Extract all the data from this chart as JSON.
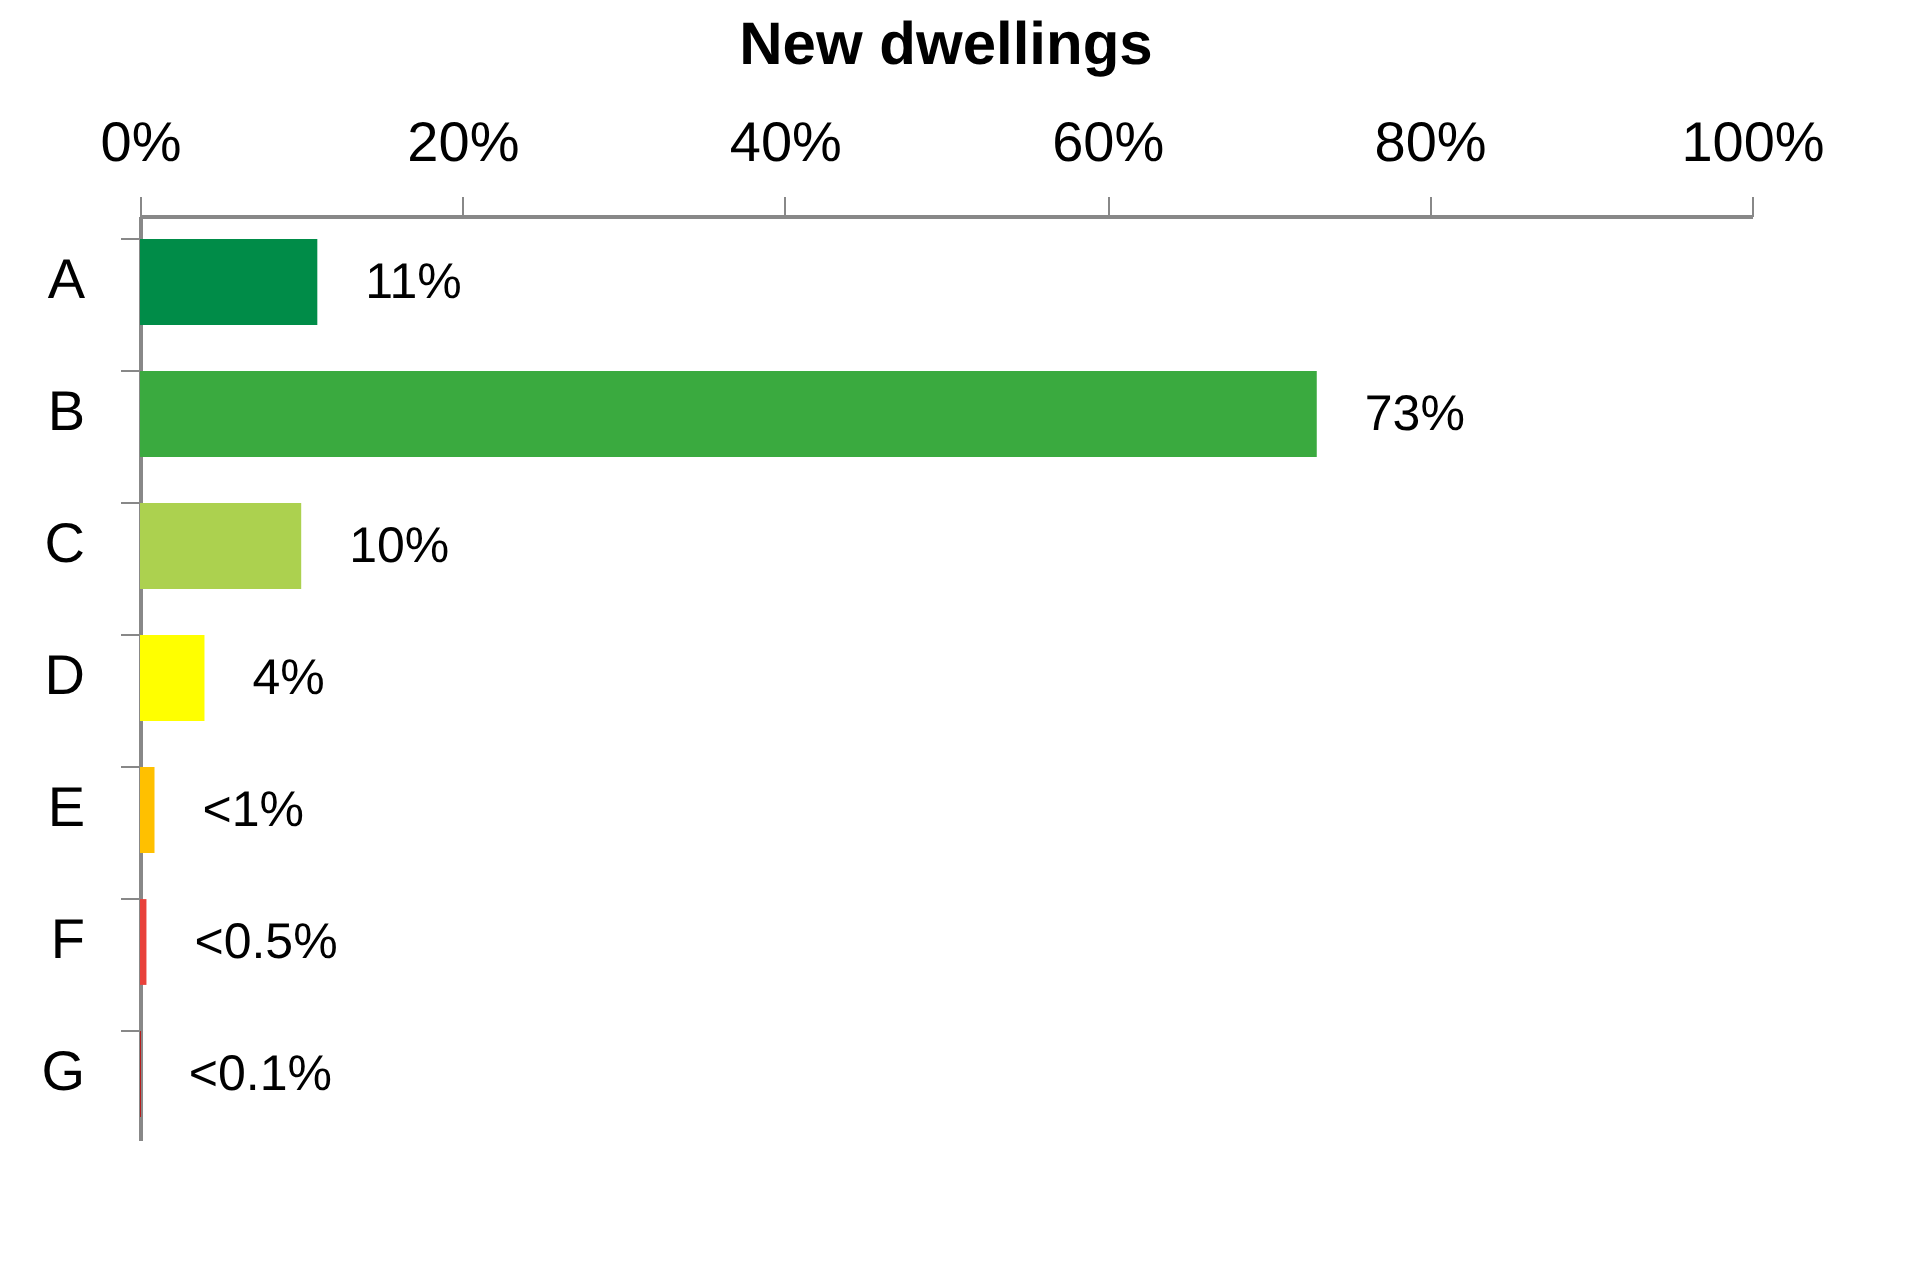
{
  "chart_data": {
    "type": "bar",
    "orientation": "horizontal",
    "title": "New dwellings",
    "categories": [
      "A",
      "B",
      "C",
      "D",
      "E",
      "F",
      "G"
    ],
    "values": [
      11,
      73,
      10,
      4,
      0.9,
      0.4,
      0.05
    ],
    "colors": [
      "#008c48",
      "#3aaa3f",
      "#acd14f",
      "#ffff00",
      "#ffc000",
      "#e8413a",
      "#c00000"
    ],
    "value_labels": [
      "11%",
      "73%",
      "10%",
      "4%",
      "<1%",
      "<0.5%",
      "<0.1%"
    ],
    "xlim": [
      0,
      100
    ],
    "xticks": [
      {
        "value": 0,
        "label": "0%"
      },
      {
        "value": 20,
        "label": "20%"
      },
      {
        "value": 40,
        "label": "40%"
      },
      {
        "value": 60,
        "label": "60%"
      },
      {
        "value": 80,
        "label": "80%"
      },
      {
        "value": 100,
        "label": "100%"
      }
    ],
    "grid": false,
    "legend": false
  }
}
